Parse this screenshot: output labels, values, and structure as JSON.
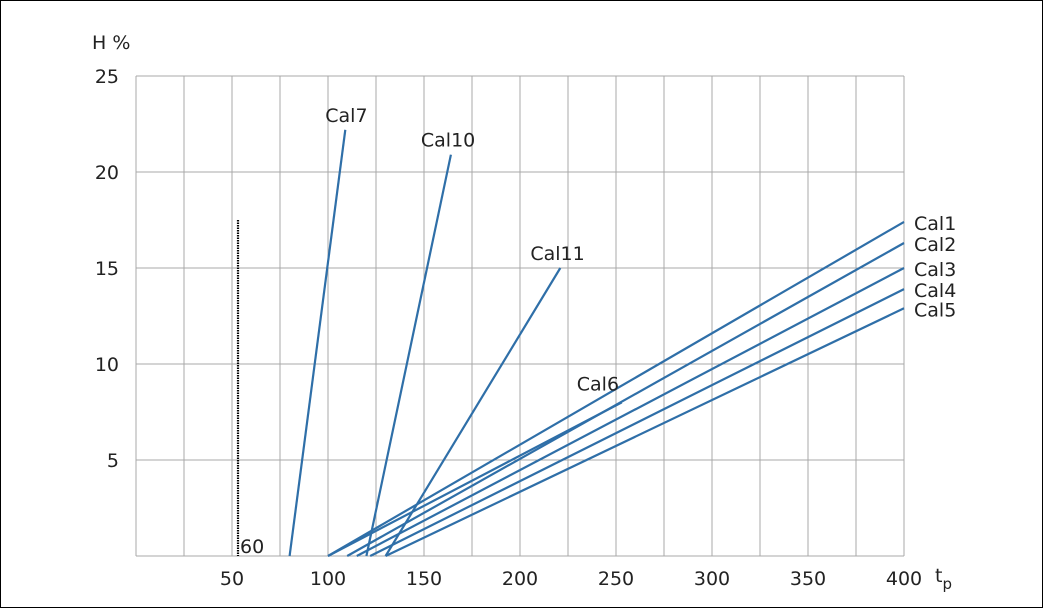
{
  "chart_data": {
    "type": "line",
    "title": "",
    "ylabel": "H %",
    "xlabel_main": "t",
    "xlabel_sub": "p",
    "x_ticks": [
      50,
      60,
      100,
      150,
      200,
      250,
      300,
      350,
      400
    ],
    "x_tick_labels": [
      "50",
      "60",
      "100",
      "150",
      "200",
      "250",
      "300",
      "350",
      "400"
    ],
    "y_ticks": [
      5,
      10,
      15,
      20,
      25
    ],
    "y_tick_labels": [
      "5",
      "10",
      "15",
      "20",
      "25"
    ],
    "ylim": [
      0,
      25
    ],
    "grid": true,
    "line_color": "#2f6fa8",
    "reference_line": {
      "x": 60,
      "y_top": 17.5,
      "label": "60",
      "color": "#000000"
    },
    "series": [
      {
        "name": "Cal7",
        "points": [
          [
            80,
            0
          ],
          [
            109,
            22.2
          ]
        ]
      },
      {
        "name": "Cal10",
        "points": [
          [
            120,
            0
          ],
          [
            164,
            20.9
          ]
        ]
      },
      {
        "name": "Cal11",
        "points": [
          [
            130,
            0
          ],
          [
            221,
            15
          ]
        ]
      },
      {
        "name": "Cal6",
        "points": [
          [
            100,
            0
          ],
          [
            253,
            8
          ]
        ]
      },
      {
        "name": "Cal1",
        "points": [
          [
            100,
            0
          ],
          [
            400,
            17.4
          ]
        ]
      },
      {
        "name": "Cal2",
        "points": [
          [
            110,
            0
          ],
          [
            400,
            16.3
          ]
        ]
      },
      {
        "name": "Cal3",
        "points": [
          [
            115,
            0
          ],
          [
            400,
            15
          ]
        ]
      },
      {
        "name": "Cal4",
        "points": [
          [
            122,
            0
          ],
          [
            400,
            13.9
          ]
        ]
      },
      {
        "name": "Cal5",
        "points": [
          [
            130,
            0
          ],
          [
            400,
            12.9
          ]
        ]
      }
    ]
  }
}
